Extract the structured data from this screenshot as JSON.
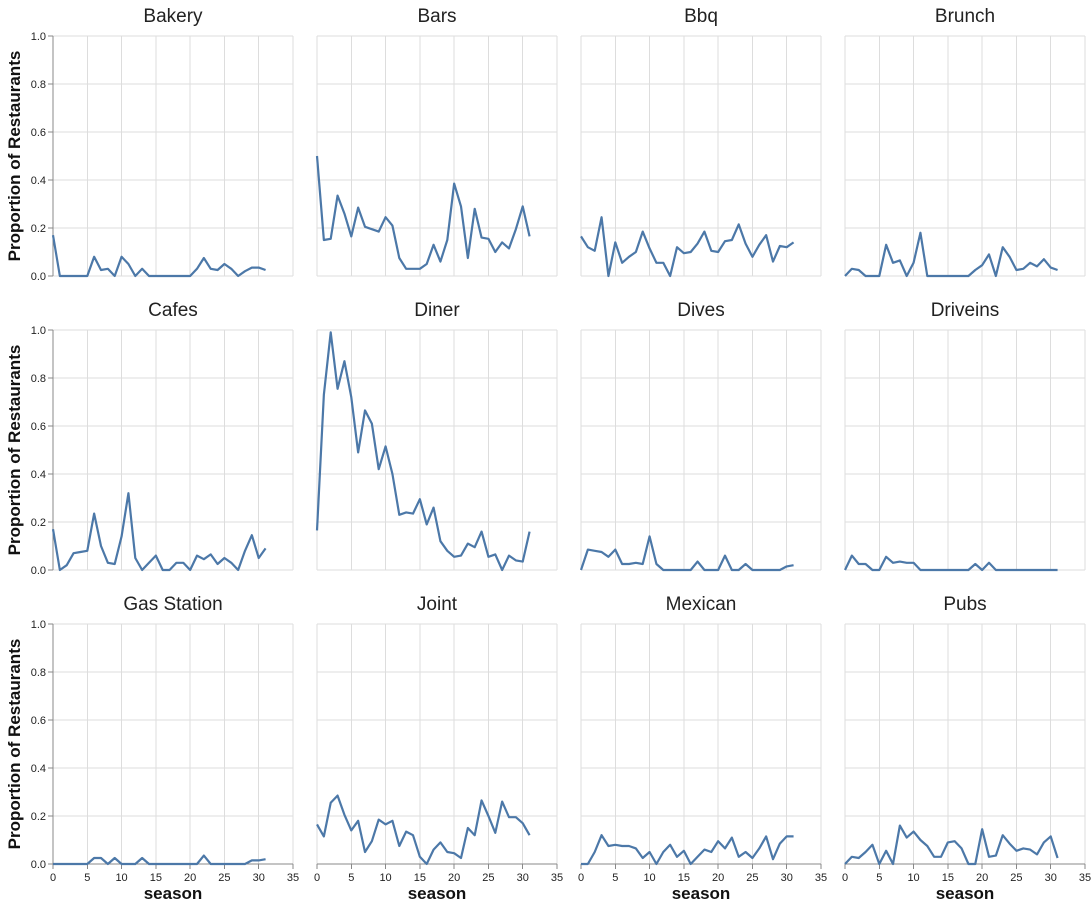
{
  "chart_data": {
    "type": "line",
    "layout": "small-multiples",
    "xlabel": "season",
    "ylabel": "Proportion of Restaurants",
    "xlim": [
      0,
      35
    ],
    "ylim": [
      0,
      1
    ],
    "x_ticks": [
      0,
      5,
      10,
      15,
      20,
      25,
      30,
      35
    ],
    "y_ticks": [
      0.0,
      0.2,
      0.4,
      0.6,
      0.8,
      1.0
    ],
    "y_tick_labels": [
      "0.0",
      "0.2",
      "0.4",
      "0.6",
      "0.8",
      "1.0"
    ],
    "grid": true,
    "line_color": "#4c78a8",
    "x": [
      0,
      1,
      2,
      3,
      4,
      5,
      6,
      7,
      8,
      9,
      10,
      11,
      12,
      13,
      14,
      15,
      16,
      17,
      18,
      19,
      20,
      21,
      22,
      23,
      24,
      25,
      26,
      27,
      28,
      29,
      30,
      31
    ],
    "panels": [
      {
        "title": "Bakery",
        "values": [
          0.17,
          0,
          0,
          0,
          0,
          0,
          0.08,
          0.025,
          0.03,
          0,
          0.08,
          0.05,
          0,
          0.03,
          0,
          0,
          0,
          0,
          0,
          0,
          0,
          0.03,
          0.075,
          0.03,
          0.025,
          0.05,
          0.03,
          0,
          0.02,
          0.035,
          0.035,
          0.025
        ]
      },
      {
        "title": "Bars",
        "values": [
          0.5,
          0.15,
          0.155,
          0.335,
          0.26,
          0.165,
          0.285,
          0.205,
          0.195,
          0.185,
          0.245,
          0.21,
          0.075,
          0.03,
          0.03,
          0.03,
          0.05,
          0.13,
          0.06,
          0.15,
          0.385,
          0.29,
          0.075,
          0.28,
          0.16,
          0.155,
          0.1,
          0.14,
          0.115,
          0.195,
          0.29,
          0.165
        ]
      },
      {
        "title": "Bbq",
        "values": [
          0.165,
          0.12,
          0.105,
          0.245,
          0,
          0.14,
          0.055,
          0.08,
          0.1,
          0.185,
          0.115,
          0.055,
          0.055,
          0,
          0.12,
          0.095,
          0.1,
          0.135,
          0.185,
          0.105,
          0.1,
          0.145,
          0.15,
          0.215,
          0.135,
          0.08,
          0.13,
          0.17,
          0.06,
          0.125,
          0.12,
          0.14
        ]
      },
      {
        "title": "Brunch",
        "values": [
          0,
          0.03,
          0.025,
          0,
          0,
          0,
          0.13,
          0.055,
          0.065,
          0,
          0.055,
          0.18,
          0,
          0,
          0,
          0,
          0,
          0,
          0,
          0.025,
          0.045,
          0.09,
          0,
          0.12,
          0.08,
          0.025,
          0.03,
          0.055,
          0.04,
          0.07,
          0.035,
          0.025
        ]
      },
      {
        "title": "Cafes",
        "values": [
          0.17,
          0,
          0.02,
          0.07,
          0.075,
          0.08,
          0.235,
          0.1,
          0.03,
          0.025,
          0.14,
          0.32,
          0.05,
          0,
          0.03,
          0.06,
          0,
          0,
          0.03,
          0.03,
          0,
          0.06,
          0.045,
          0.065,
          0.025,
          0.05,
          0.03,
          0,
          0.08,
          0.145,
          0.05,
          0.09
        ]
      },
      {
        "title": "Diner",
        "values": [
          0.165,
          0.73,
          0.99,
          0.755,
          0.87,
          0.72,
          0.49,
          0.665,
          0.61,
          0.42,
          0.515,
          0.4,
          0.23,
          0.24,
          0.235,
          0.295,
          0.19,
          0.26,
          0.12,
          0.08,
          0.055,
          0.06,
          0.11,
          0.095,
          0.16,
          0.055,
          0.065,
          0,
          0.06,
          0.04,
          0.035,
          0.16
        ]
      },
      {
        "title": "Dives",
        "values": [
          0,
          0.085,
          0.08,
          0.075,
          0.055,
          0.085,
          0.025,
          0.025,
          0.03,
          0.025,
          0.14,
          0.025,
          0,
          0,
          0,
          0,
          0,
          0.035,
          0,
          0,
          0,
          0.06,
          0,
          0,
          0.025,
          0,
          0,
          0,
          0,
          0,
          0.015,
          0.02
        ]
      },
      {
        "title": "Driveins",
        "values": [
          0,
          0.06,
          0.025,
          0.025,
          0,
          0,
          0.055,
          0.03,
          0.035,
          0.03,
          0.03,
          0,
          0,
          0,
          0,
          0,
          0,
          0,
          0,
          0.025,
          0,
          0.03,
          0,
          0,
          0,
          0,
          0,
          0,
          0,
          0,
          0,
          0
        ]
      },
      {
        "title": "Gas Station",
        "values": [
          0,
          0,
          0,
          0,
          0,
          0,
          0.025,
          0.025,
          0,
          0.025,
          0,
          0,
          0,
          0.025,
          0,
          0,
          0,
          0,
          0,
          0,
          0,
          0,
          0.035,
          0,
          0,
          0,
          0,
          0,
          0,
          0.015,
          0.015,
          0.02
        ]
      },
      {
        "title": "Joint",
        "values": [
          0.165,
          0.115,
          0.255,
          0.285,
          0.205,
          0.14,
          0.18,
          0.05,
          0.095,
          0.185,
          0.165,
          0.18,
          0.075,
          0.135,
          0.12,
          0.03,
          0,
          0.06,
          0.09,
          0.05,
          0.045,
          0.025,
          0.15,
          0.12,
          0.265,
          0.2,
          0.13,
          0.26,
          0.195,
          0.195,
          0.17,
          0.12
        ]
      },
      {
        "title": "Mexican",
        "values": [
          0,
          0,
          0.05,
          0.12,
          0.075,
          0.08,
          0.075,
          0.075,
          0.065,
          0.025,
          0.05,
          0,
          0.05,
          0.08,
          0.03,
          0.055,
          0,
          0.03,
          0.06,
          0.05,
          0.095,
          0.065,
          0.11,
          0.03,
          0.05,
          0.025,
          0.065,
          0.115,
          0.02,
          0.085,
          0.115,
          0.115
        ]
      },
      {
        "title": "Pubs",
        "values": [
          0,
          0.03,
          0.025,
          0.05,
          0.08,
          0,
          0.055,
          0,
          0.16,
          0.11,
          0.135,
          0.1,
          0.075,
          0.03,
          0.03,
          0.09,
          0.095,
          0.065,
          0,
          0,
          0.145,
          0.03,
          0.035,
          0.12,
          0.085,
          0.055,
          0.065,
          0.06,
          0.04,
          0.09,
          0.115,
          0.025
        ]
      }
    ]
  }
}
